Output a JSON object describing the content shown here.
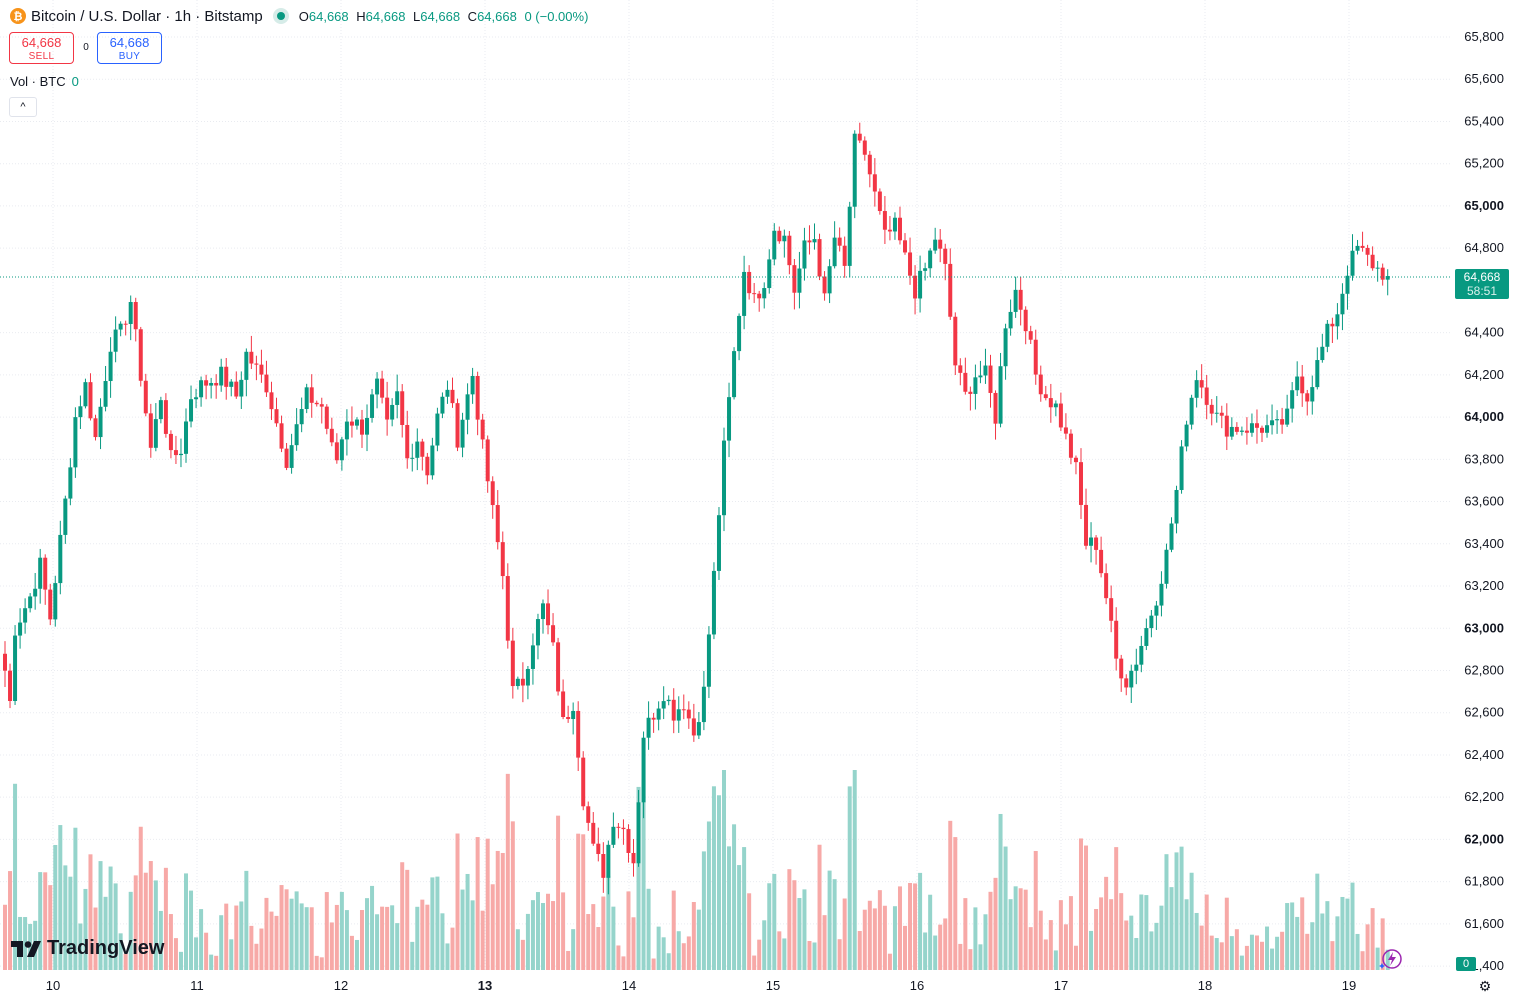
{
  "header": {
    "title": "Bitcoin / U.S. Dollar · 1h · Bitstamp",
    "open_label": "O",
    "open": "64,668",
    "high_label": "H",
    "high": "64,668",
    "low_label": "L",
    "low": "64,668",
    "close_label": "C",
    "close": "64,668",
    "change": "0 (−0.00%)"
  },
  "trade": {
    "sell_price": "64,668",
    "sell_label": "SELL",
    "spread": "0",
    "buy_price": "64,668",
    "buy_label": "BUY"
  },
  "volume_legend": {
    "label": "Vol · BTC",
    "value": "0"
  },
  "collapse_glyph": "^",
  "logo_text": "TradingView",
  "last_price": {
    "price": "64,668",
    "countdown": "58:51"
  },
  "volume_tag": "0",
  "colors": {
    "up": "#089981",
    "down": "#f23645",
    "up_vol": "#95d4cb",
    "down_vol": "#f7a9a7",
    "grid": "#e9ebf0"
  },
  "icons": {
    "symbol": "bitcoin-icon",
    "status": "market-open-dot-icon",
    "settings": "gear-icon",
    "logo": "tradingview-logo-icon"
  },
  "chart_data": {
    "type": "candlestick",
    "interval": "1h",
    "price_axis": {
      "ticks": [
        "65,800",
        "65,600",
        "65,400",
        "65,200",
        "65,000",
        "64,800",
        "64,400",
        "64,200",
        "64,000",
        "63,800",
        "63,600",
        "63,400",
        "63,200",
        "63,000",
        "62,800",
        "62,600",
        "62,400",
        "62,200",
        "62,000",
        "61,800",
        "61,600",
        "61,400"
      ],
      "bold_ticks": [
        "65,000",
        "64,000",
        "63,000",
        "62,000"
      ],
      "range": [
        61400,
        65800
      ]
    },
    "time_axis": {
      "labels": [
        "10",
        "11",
        "12",
        "13",
        "14",
        "15",
        "16",
        "17",
        "18",
        "19"
      ],
      "bold_labels": [
        "13"
      ]
    },
    "price_keypoints": [
      [
        0,
        62800
      ],
      [
        1,
        62650
      ],
      [
        2,
        63000
      ],
      [
        5,
        63150
      ],
      [
        7,
        63300
      ],
      [
        9,
        63050
      ],
      [
        12,
        63600
      ],
      [
        14,
        64000
      ],
      [
        16,
        64150
      ],
      [
        18,
        63900
      ],
      [
        21,
        64350
      ],
      [
        23,
        64400
      ],
      [
        25,
        64550
      ],
      [
        27,
        64200
      ],
      [
        29,
        63850
      ],
      [
        31,
        64100
      ],
      [
        33,
        63800
      ],
      [
        35,
        63850
      ],
      [
        37,
        64100
      ],
      [
        39,
        64150
      ],
      [
        43,
        64200
      ],
      [
        46,
        64100
      ],
      [
        48,
        64300
      ],
      [
        52,
        64150
      ],
      [
        56,
        63800
      ],
      [
        60,
        64100
      ],
      [
        63,
        64050
      ],
      [
        65,
        63850
      ],
      [
        66,
        63800
      ],
      [
        68,
        64000
      ],
      [
        71,
        63950
      ],
      [
        74,
        64150
      ],
      [
        76,
        63950
      ],
      [
        78,
        64100
      ],
      [
        80,
        63800
      ],
      [
        82,
        63900
      ],
      [
        84,
        63750
      ],
      [
        86,
        64000
      ],
      [
        88,
        64150
      ],
      [
        90,
        63900
      ],
      [
        93,
        64200
      ],
      [
        95,
        63850
      ],
      [
        97,
        63550
      ],
      [
        99,
        63250
      ],
      [
        101,
        62700
      ],
      [
        103,
        62750
      ],
      [
        105,
        62950
      ],
      [
        107,
        63100
      ],
      [
        109,
        62900
      ],
      [
        111,
        62550
      ],
      [
        113,
        62650
      ],
      [
        115,
        62200
      ],
      [
        117,
        61950
      ],
      [
        119,
        61850
      ],
      [
        121,
        62100
      ],
      [
        123,
        62050
      ],
      [
        125,
        61900
      ],
      [
        127,
        62500
      ],
      [
        129,
        62600
      ],
      [
        131,
        62700
      ],
      [
        133,
        62600
      ],
      [
        135,
        62650
      ],
      [
        137,
        62500
      ],
      [
        139,
        62700
      ],
      [
        141,
        63250
      ],
      [
        143,
        63850
      ],
      [
        145,
        64300
      ],
      [
        147,
        64700
      ],
      [
        149,
        64550
      ],
      [
        151,
        64650
      ],
      [
        153,
        64900
      ],
      [
        155,
        64850
      ],
      [
        157,
        64600
      ],
      [
        159,
        64800
      ],
      [
        161,
        64850
      ],
      [
        163,
        64550
      ],
      [
        165,
        64850
      ],
      [
        167,
        64700
      ],
      [
        169,
        65300
      ],
      [
        171,
        65250
      ],
      [
        173,
        65050
      ],
      [
        175,
        64850
      ],
      [
        177,
        64900
      ],
      [
        179,
        64750
      ],
      [
        181,
        64600
      ],
      [
        183,
        64700
      ],
      [
        185,
        64850
      ],
      [
        187,
        64700
      ],
      [
        189,
        64250
      ],
      [
        191,
        64100
      ],
      [
        193,
        64200
      ],
      [
        195,
        64200
      ],
      [
        197,
        64000
      ],
      [
        199,
        64450
      ],
      [
        201,
        64600
      ],
      [
        203,
        64450
      ],
      [
        205,
        64200
      ],
      [
        207,
        64100
      ],
      [
        209,
        64050
      ],
      [
        211,
        63900
      ],
      [
        213,
        63750
      ],
      [
        215,
        63400
      ],
      [
        217,
        63400
      ],
      [
        219,
        63150
      ],
      [
        221,
        62850
      ],
      [
        223,
        62750
      ],
      [
        225,
        62850
      ],
      [
        227,
        63000
      ],
      [
        229,
        63150
      ],
      [
        231,
        63350
      ],
      [
        233,
        63650
      ],
      [
        235,
        64000
      ],
      [
        237,
        64200
      ],
      [
        239,
        64100
      ],
      [
        241,
        64000
      ],
      [
        243,
        63950
      ],
      [
        245,
        63950
      ],
      [
        247,
        63950
      ],
      [
        249,
        63950
      ],
      [
        251,
        63950
      ],
      [
        253,
        63950
      ],
      [
        255,
        64000
      ],
      [
        257,
        64200
      ],
      [
        259,
        64100
      ],
      [
        261,
        64250
      ],
      [
        263,
        64400
      ],
      [
        265,
        64500
      ],
      [
        267,
        64700
      ],
      [
        269,
        64800
      ],
      [
        271,
        64750
      ],
      [
        273,
        64700
      ],
      [
        275,
        64668
      ]
    ],
    "last_price": 64668
  }
}
